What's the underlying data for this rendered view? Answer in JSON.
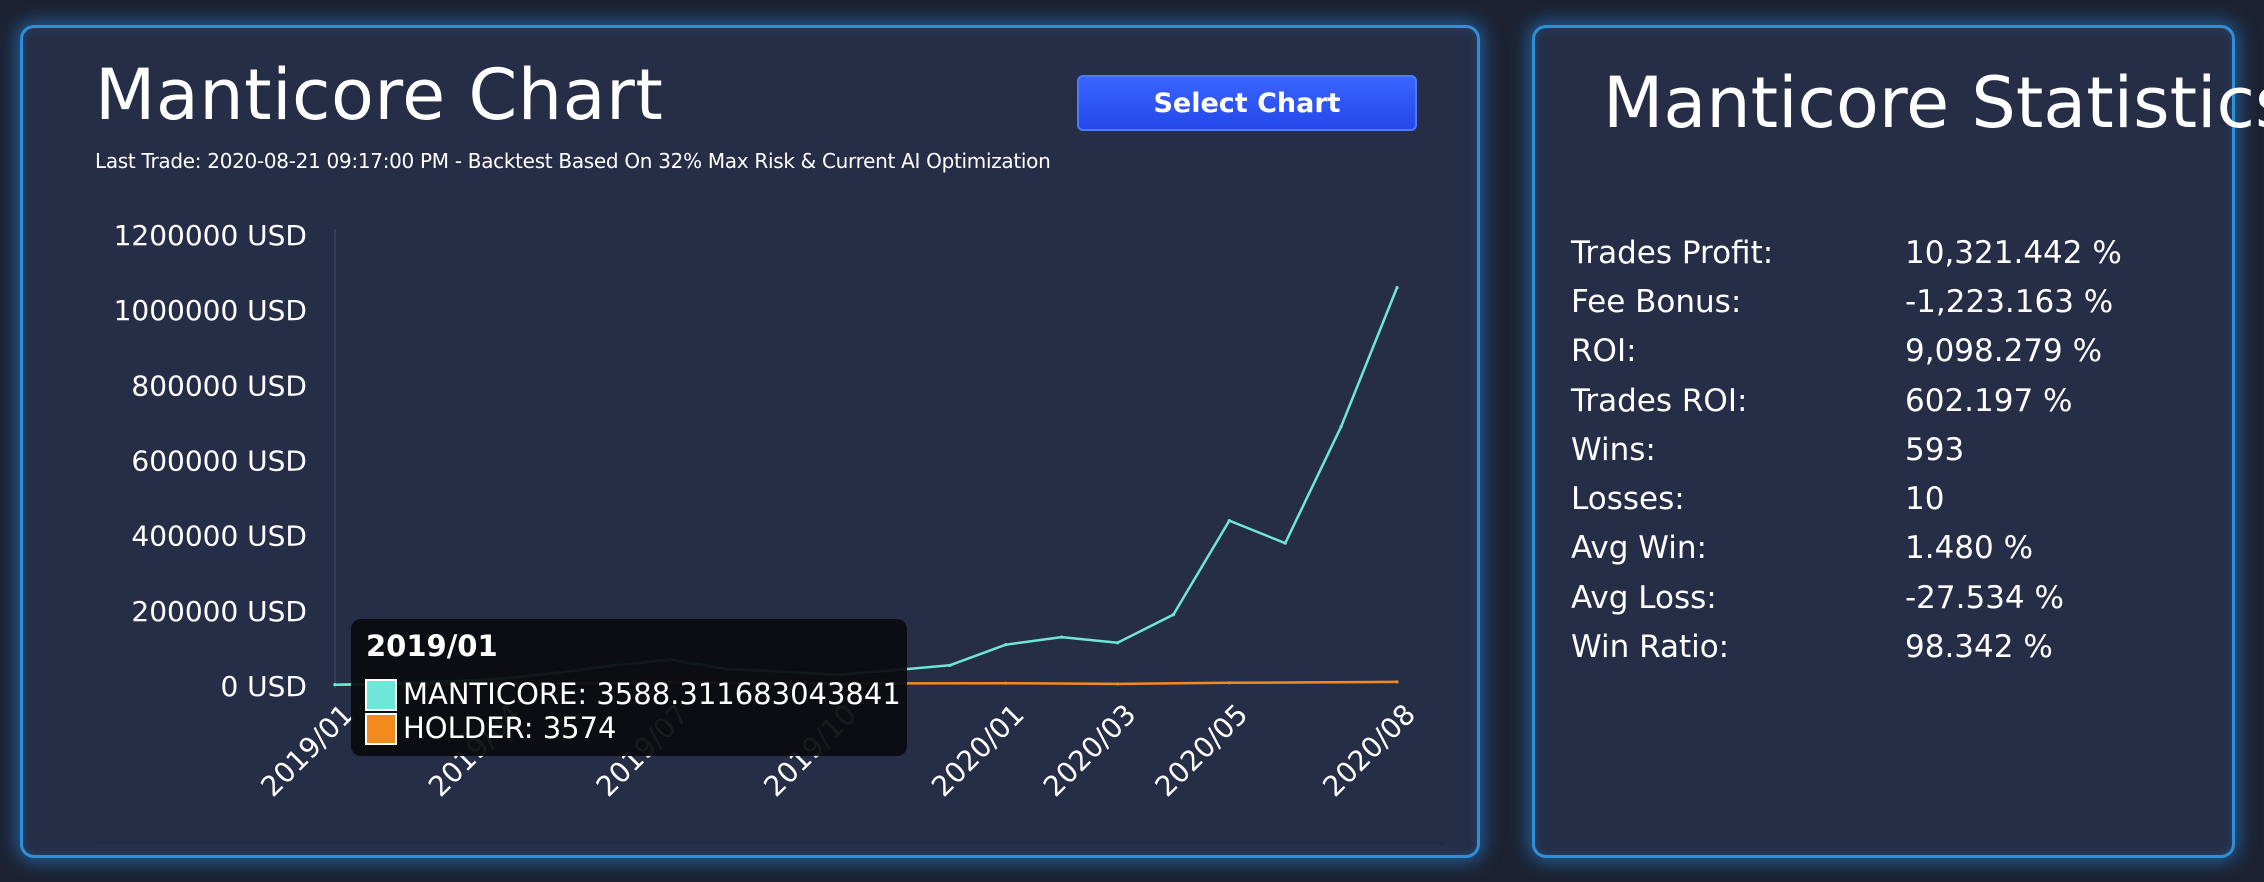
{
  "chart_panel": {
    "title": "Manticore Chart",
    "subtitle": "Last Trade: 2020-08-21 09:17:00 PM - Backtest Based On 32% Max Risk & Current AI Optimization",
    "select_button": "Select Chart"
  },
  "stats_panel": {
    "title": "Manticore Statistics",
    "rows": [
      {
        "label": "Trades Profit:",
        "value": "10,321.442 %"
      },
      {
        "label": "Fee Bonus:",
        "value": "-1,223.163 %"
      },
      {
        "label": "ROI:",
        "value": "9,098.279 %"
      },
      {
        "label": "Trades ROI:",
        "value": "602.197 %"
      },
      {
        "label": "Wins:",
        "value": "593"
      },
      {
        "label": "Losses:",
        "value": "10"
      },
      {
        "label": "Avg Win:",
        "value": "1.480 %"
      },
      {
        "label": "Avg Loss:",
        "value": "-27.534 %"
      },
      {
        "label": "Win Ratio:",
        "value": "98.342 %"
      }
    ]
  },
  "colors": {
    "manticore_series": "#6ee6d8",
    "holder_series": "#f28a1e",
    "panel_border": "#2f8fd8",
    "button": "#2f57f5"
  },
  "tooltip": {
    "title": "2019/01",
    "items": [
      {
        "label": "MANTICORE: 3588.311683043841",
        "color": "#6ee6d8"
      },
      {
        "label": "HOLDER: 3574",
        "color": "#f28a1e"
      }
    ]
  },
  "chart_data": {
    "type": "line",
    "ylim": [
      0,
      1200000
    ],
    "y_ticks": [
      "0 USD",
      "200000 USD",
      "400000 USD",
      "600000 USD",
      "800000 USD",
      "1000000 USD",
      "1200000 USD"
    ],
    "x_range": [
      "2019/01",
      "2020/08"
    ],
    "x_ticks": [
      "2019/01",
      "2019/04",
      "2019/07",
      "2019/10",
      "2020/01",
      "2020/03",
      "2020/05",
      "2020/08"
    ],
    "grid": false,
    "legend": "tooltip",
    "series": [
      {
        "name": "MANTICORE",
        "color": "#6ee6d8",
        "points": [
          [
            "2019/01",
            3588
          ],
          [
            "2019/02",
            7000
          ],
          [
            "2019/03",
            12000
          ],
          [
            "2019/04",
            20000
          ],
          [
            "2019/05",
            35000
          ],
          [
            "2019/06",
            55000
          ],
          [
            "2019/07",
            70000
          ],
          [
            "2019/08",
            45000
          ],
          [
            "2019/09",
            38000
          ],
          [
            "2019/10",
            30000
          ],
          [
            "2019/11",
            42000
          ],
          [
            "2019/12",
            55000
          ],
          [
            "2020/01",
            110000
          ],
          [
            "2020/02",
            130000
          ],
          [
            "2020/03",
            115000
          ],
          [
            "2020/04",
            190000
          ],
          [
            "2020/05",
            440000
          ],
          [
            "2020/06",
            380000
          ],
          [
            "2020/07",
            690000
          ],
          [
            "2020/08",
            1060000
          ]
        ]
      },
      {
        "name": "HOLDER",
        "color": "#f28a1e",
        "points": [
          [
            "2019/01",
            3574
          ],
          [
            "2019/04",
            5500
          ],
          [
            "2019/07",
            9000
          ],
          [
            "2019/10",
            7000
          ],
          [
            "2020/01",
            7500
          ],
          [
            "2020/03",
            5500
          ],
          [
            "2020/05",
            8500
          ],
          [
            "2020/08",
            11000
          ]
        ]
      }
    ]
  }
}
